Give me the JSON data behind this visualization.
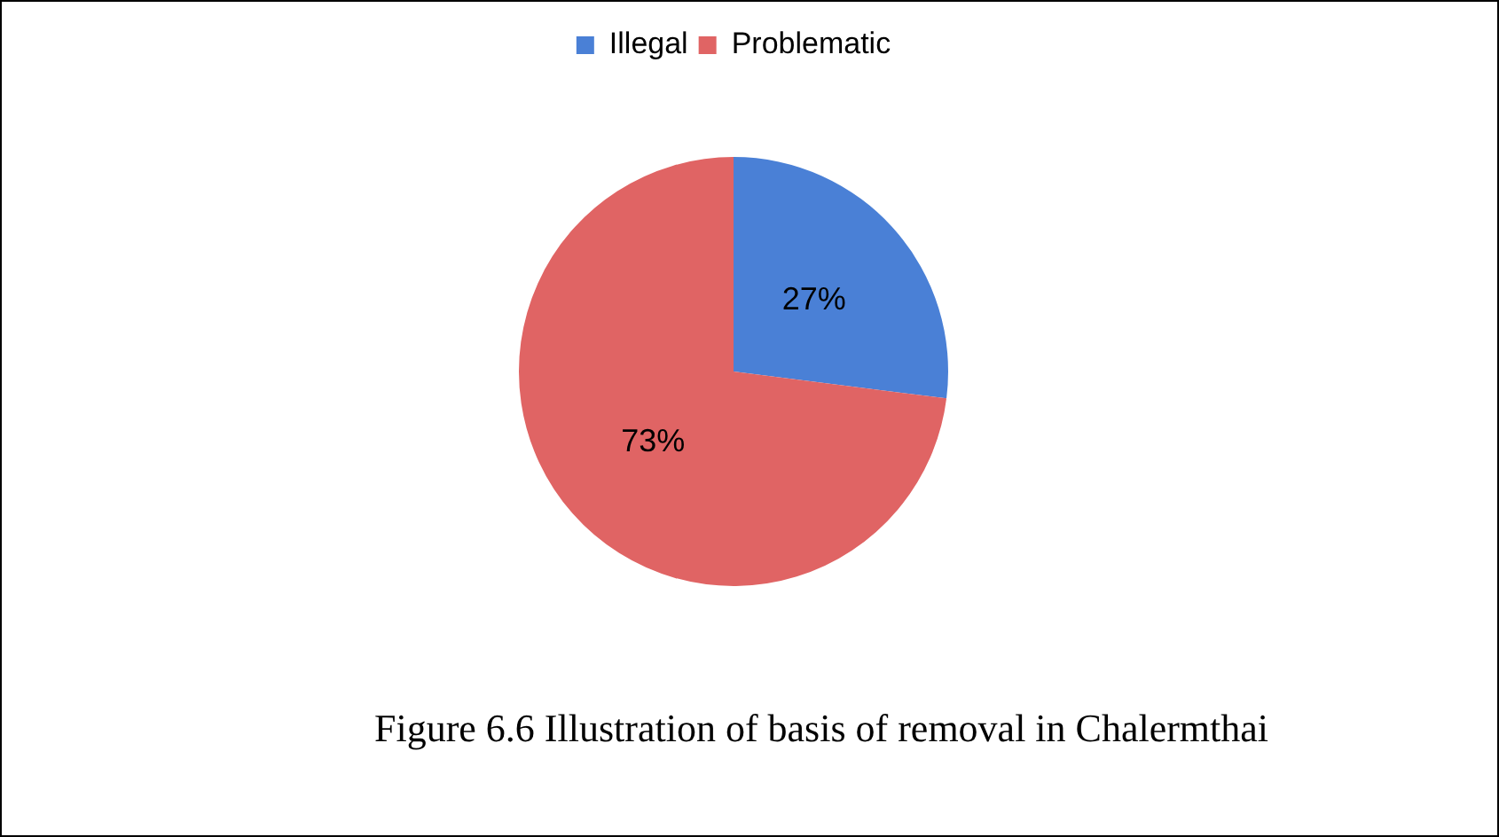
{
  "chart_data": {
    "type": "pie",
    "categories": [
      "Illegal",
      "Problematic"
    ],
    "values": [
      27,
      73
    ],
    "colors": [
      "#4a80d6",
      "#e06464"
    ],
    "value_labels": [
      "27%",
      "73%"
    ],
    "legend": "top",
    "annotations": [
      "Figure 6.6 Illustration of basis of removal in Chalermthai"
    ]
  }
}
